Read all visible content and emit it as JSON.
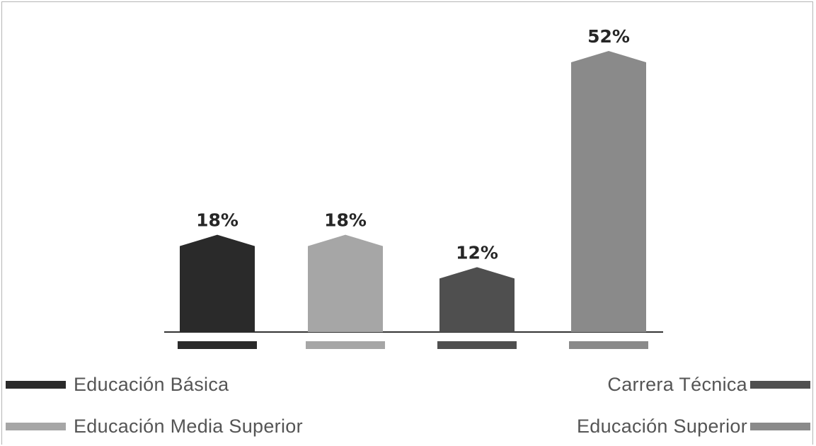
{
  "chart_data": {
    "type": "bar",
    "categories": [
      "Educación Básica",
      "Educación Media Superior",
      "Carrera Técnica",
      "Educación Superior"
    ],
    "values": [
      18,
      18,
      12,
      52
    ],
    "value_labels": [
      "18%",
      "18%",
      "12%",
      "52%"
    ],
    "colors": [
      "#2a2a2a",
      "#a6a6a6",
      "#4f4f4f",
      "#8a8a8a"
    ],
    "ylim": [
      0,
      52
    ],
    "grid": false,
    "legend_placement": "bottom"
  },
  "legend": {
    "items": [
      {
        "label": "Educación Básica",
        "color": "#2a2a2a"
      },
      {
        "label": "Carrera Técnica",
        "color": "#4f4f4f"
      },
      {
        "label": "Educación Media Superior",
        "color": "#a6a6a6"
      },
      {
        "label": "Educación Superior",
        "color": "#8a8a8a"
      }
    ]
  }
}
